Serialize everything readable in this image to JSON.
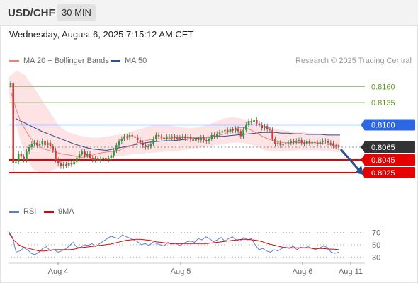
{
  "header": {
    "symbol": "USD/CHF",
    "timeframe": "30 MIN",
    "datetime": "Wednesday, August 6, 2025 7:15:12 AM CET"
  },
  "legend": {
    "items": [
      {
        "label": "MA 20 + Bollinger Bands",
        "color": "#f08080"
      },
      {
        "label": "MA 50",
        "color": "#2f4f8f"
      }
    ],
    "research": "Research © 2025 Trading Central"
  },
  "chart_data": [
    {
      "type": "candlestick",
      "ylim": [
        0.7985,
        0.8185
      ],
      "x_ticks": [
        "Aug 4",
        "Aug 5",
        "Aug 6",
        "Aug 11"
      ],
      "levels": [
        {
          "value": 0.816,
          "label": "0.8160",
          "color": "#9bc37a",
          "kind": "resistance"
        },
        {
          "value": 0.8135,
          "label": "0.8135",
          "color": "#9bc37a",
          "kind": "resistance"
        },
        {
          "value": 0.81,
          "label": "0.8100",
          "color": "#2e67e6",
          "kind": "pivot"
        },
        {
          "value": 0.8065,
          "label": "0.8065",
          "color": "#333333",
          "kind": "last"
        },
        {
          "value": 0.8045,
          "label": "0.8045",
          "color": "#e60000",
          "kind": "support"
        },
        {
          "value": 0.8025,
          "label": "0.8025",
          "color": "#e60000",
          "kind": "support"
        }
      ],
      "close": [
        0.8165,
        0.804,
        0.8042,
        0.8055,
        0.805,
        0.8045,
        0.8058,
        0.8065,
        0.807,
        0.8072,
        0.8068,
        0.807,
        0.8075,
        0.8068,
        0.8072,
        0.8066,
        0.806,
        0.8045,
        0.804,
        0.8035,
        0.8038,
        0.8036,
        0.804,
        0.8038,
        0.8042,
        0.8048,
        0.8055,
        0.8058,
        0.8052,
        0.8055,
        0.8048,
        0.8045,
        0.8047,
        0.8044,
        0.8046,
        0.8048,
        0.8045,
        0.8048,
        0.8052,
        0.806,
        0.8068,
        0.8074,
        0.8078,
        0.8082,
        0.808,
        0.8084,
        0.8082,
        0.808,
        0.8076,
        0.8072,
        0.8068,
        0.8065,
        0.8066,
        0.807,
        0.8078,
        0.8084,
        0.8082,
        0.808,
        0.8078,
        0.8082,
        0.808,
        0.8082,
        0.808,
        0.8078,
        0.808,
        0.8082,
        0.8079,
        0.8081,
        0.8077,
        0.8075,
        0.8078,
        0.8076,
        0.808,
        0.8076,
        0.8074,
        0.8078,
        0.8084,
        0.8082,
        0.8086,
        0.8088,
        0.809,
        0.8092,
        0.8089,
        0.8093,
        0.8091,
        0.8094,
        0.809,
        0.8082,
        0.8092,
        0.81,
        0.8106,
        0.8104,
        0.8108,
        0.8102,
        0.81,
        0.8095,
        0.8098,
        0.8093,
        0.8092,
        0.8078,
        0.807,
        0.8072,
        0.8068,
        0.807,
        0.8071,
        0.8072,
        0.8074,
        0.8073,
        0.8075,
        0.8076,
        0.8072,
        0.807,
        0.8074,
        0.8071,
        0.8073,
        0.8072,
        0.807,
        0.8073,
        0.8075,
        0.8074,
        0.8072,
        0.8071,
        0.8067,
        0.8066,
        0.8065
      ],
      "ma20": [
        0.815,
        0.8125,
        0.8105,
        0.8092,
        0.808,
        0.8072,
        0.8066,
        0.8062,
        0.806,
        0.8058,
        0.8056,
        0.8054,
        0.8053,
        0.8052,
        0.805,
        0.8049,
        0.805,
        0.8052,
        0.8054,
        0.8056,
        0.8057,
        0.8058,
        0.8058,
        0.806,
        0.8064,
        0.8066,
        0.8069,
        0.8072,
        0.8074,
        0.8076,
        0.8077,
        0.8078,
        0.8078,
        0.8079,
        0.8079,
        0.808,
        0.808,
        0.808,
        0.808,
        0.808,
        0.808,
        0.808,
        0.8081,
        0.8082,
        0.8083,
        0.8085,
        0.8088,
        0.8092,
        0.8095,
        0.8096,
        0.8095,
        0.8092,
        0.8088,
        0.8084,
        0.808,
        0.8077,
        0.8075,
        0.8073,
        0.8072,
        0.8072,
        0.8072,
        0.8072,
        0.8072,
        0.8072,
        0.8072,
        0.8072,
        0.8071,
        0.807,
        0.8069,
        0.8068,
        0.8067
      ],
      "ma50": [
        0.811,
        0.8105,
        0.81,
        0.8095,
        0.809,
        0.8086,
        0.8082,
        0.8078,
        0.8074,
        0.807,
        0.8067,
        0.8064,
        0.8062,
        0.8061,
        0.806,
        0.8062,
        0.8064,
        0.8066,
        0.8068,
        0.807,
        0.8072,
        0.8073,
        0.8074,
        0.8075,
        0.8075,
        0.8076,
        0.8077,
        0.8078,
        0.8079,
        0.808,
        0.8081,
        0.8082,
        0.8082,
        0.8083,
        0.8084,
        0.8085,
        0.8086,
        0.8087,
        0.8088,
        0.8088,
        0.8088,
        0.8087,
        0.8087,
        0.8086,
        0.8086,
        0.8085,
        0.8085,
        0.8085,
        0.8084,
        0.8084,
        0.8084
      ],
      "bb_upper": [
        0.8175,
        0.8185,
        0.8178,
        0.816,
        0.814,
        0.812,
        0.81,
        0.809,
        0.8085,
        0.8082,
        0.808,
        0.808,
        0.8082,
        0.8084,
        0.8086,
        0.809,
        0.8094,
        0.8098,
        0.81,
        0.81,
        0.8098,
        0.8096,
        0.8095,
        0.8096,
        0.81,
        0.8105,
        0.811,
        0.8112,
        0.811,
        0.8106,
        0.8102,
        0.8098,
        0.8094,
        0.8092,
        0.809,
        0.8089,
        0.8088,
        0.8087,
        0.8086,
        0.8085,
        0.8084
      ],
      "bb_lower": [
        0.815,
        0.8095,
        0.805,
        0.803,
        0.8025,
        0.8028,
        0.8032,
        0.8036,
        0.804,
        0.8042,
        0.8044,
        0.8046,
        0.8048,
        0.805,
        0.8052,
        0.8054,
        0.8055,
        0.8056,
        0.8057,
        0.8058,
        0.8058,
        0.806,
        0.8062,
        0.8064,
        0.8066,
        0.8068,
        0.807,
        0.8072,
        0.8072,
        0.807,
        0.8066,
        0.806,
        0.8058,
        0.8058,
        0.8059,
        0.806,
        0.806,
        0.806,
        0.8059,
        0.8058,
        0.8057
      ],
      "forecast_arrow": {
        "from": 0.8065,
        "to": 0.8025,
        "color": "#2f4f8f"
      }
    },
    {
      "type": "line",
      "ylim": [
        20,
        80
      ],
      "y_ticks": [
        "70",
        "50",
        "30"
      ],
      "series": [
        {
          "name": "RSI",
          "color": "#5b7fd6",
          "values": [
            72,
            63,
            38,
            40,
            45,
            42,
            36,
            34,
            38,
            44,
            47,
            40,
            42,
            38,
            40,
            43,
            48,
            54,
            46,
            46,
            50,
            49,
            52,
            47,
            52,
            56,
            60,
            64,
            62,
            60,
            66,
            63,
            61,
            58,
            55,
            50,
            52,
            49,
            54,
            52,
            50,
            48,
            54,
            51,
            53,
            49,
            52,
            55,
            56,
            54,
            60,
            58,
            63,
            60,
            55,
            58,
            62,
            56,
            60,
            63,
            58,
            56,
            62,
            58,
            60,
            50,
            42,
            44,
            40,
            38,
            42,
            40,
            44,
            46,
            44,
            48,
            42,
            46,
            45,
            47,
            44,
            42,
            45,
            48,
            46,
            38,
            36,
            38
          ]
        },
        {
          "name": "9MA",
          "color": "#e00000",
          "values": [
            70,
            58,
            50,
            46,
            44,
            42,
            40,
            40,
            41,
            42,
            42,
            42,
            42,
            43,
            45,
            46,
            47,
            48,
            49,
            50,
            51,
            53,
            55,
            57,
            58,
            59,
            59,
            58,
            57,
            55,
            54,
            53,
            52,
            52,
            52,
            52,
            52,
            52,
            52,
            52,
            53,
            54,
            55,
            56,
            57,
            58,
            59,
            59,
            58,
            57,
            55,
            52,
            50,
            48,
            46,
            45,
            45,
            45,
            45,
            45,
            44,
            44,
            44,
            43,
            43,
            42
          ]
        }
      ]
    }
  ],
  "rsi_legend": {
    "items": [
      {
        "label": "RSI",
        "color": "#5b7fd6"
      },
      {
        "label": "9MA",
        "color": "#e00000"
      }
    ]
  }
}
